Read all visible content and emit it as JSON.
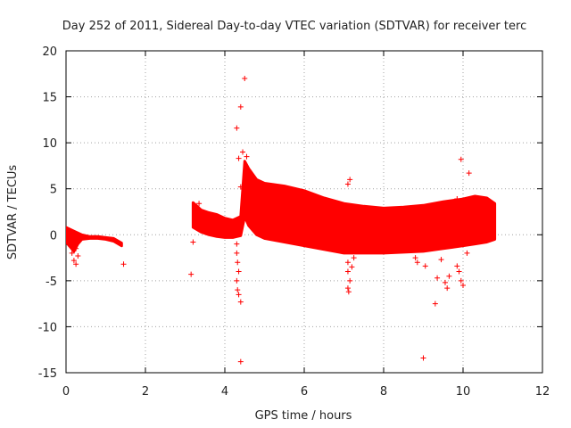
{
  "chart_data": {
    "type": "scatter",
    "title": "Day 252 of 2011, Sidereal Day-to-day VTEC variation (SDTVAR) for receiver terc",
    "xlabel": "GPS time / hours",
    "ylabel": "SDTVAR / TECUs",
    "xlim": [
      0,
      12
    ],
    "ylim": [
      -15,
      20
    ],
    "x_ticks": [
      0,
      2,
      4,
      6,
      8,
      10,
      12
    ],
    "y_ticks": [
      -15,
      -10,
      -5,
      0,
      5,
      10,
      15,
      20
    ],
    "grid": true,
    "marker": "+",
    "color": "#ff0000",
    "series": [
      {
        "name": "SDTVAR",
        "band_upper": [
          [
            0.0,
            0.8
          ],
          [
            0.2,
            0.4
          ],
          [
            0.4,
            0.0
          ],
          [
            0.6,
            -0.2
          ],
          [
            0.8,
            -0.2
          ],
          [
            1.0,
            -0.3
          ],
          [
            1.2,
            -0.4
          ],
          [
            1.4,
            -0.9
          ],
          [
            3.2,
            3.5
          ],
          [
            3.4,
            2.7
          ],
          [
            3.6,
            2.4
          ],
          [
            3.8,
            2.2
          ],
          [
            4.0,
            1.8
          ],
          [
            4.2,
            1.6
          ],
          [
            4.4,
            2.0
          ],
          [
            4.5,
            8.0
          ],
          [
            4.6,
            7.2
          ],
          [
            4.8,
            6.0
          ],
          [
            5.0,
            5.6
          ],
          [
            5.5,
            5.3
          ],
          [
            6.0,
            4.8
          ],
          [
            6.5,
            4.0
          ],
          [
            7.0,
            3.4
          ],
          [
            7.5,
            3.1
          ],
          [
            8.0,
            2.9
          ],
          [
            8.5,
            3.0
          ],
          [
            9.0,
            3.2
          ],
          [
            9.5,
            3.6
          ],
          [
            10.0,
            3.9
          ],
          [
            10.3,
            4.2
          ],
          [
            10.6,
            4.0
          ],
          [
            10.8,
            3.4
          ]
        ],
        "band_lower": [
          [
            0.0,
            -0.8
          ],
          [
            0.2,
            -1.8
          ],
          [
            0.3,
            -1.0
          ],
          [
            0.4,
            -0.5
          ],
          [
            0.6,
            -0.4
          ],
          [
            0.8,
            -0.4
          ],
          [
            1.0,
            -0.5
          ],
          [
            1.2,
            -0.7
          ],
          [
            1.4,
            -1.2
          ],
          [
            3.2,
            0.8
          ],
          [
            3.4,
            0.3
          ],
          [
            3.6,
            0.0
          ],
          [
            3.8,
            -0.2
          ],
          [
            4.0,
            -0.3
          ],
          [
            4.2,
            -0.3
          ],
          [
            4.4,
            -0.1
          ],
          [
            4.5,
            2.0
          ],
          [
            4.6,
            1.0
          ],
          [
            4.8,
            0.0
          ],
          [
            5.0,
            -0.4
          ],
          [
            5.5,
            -0.8
          ],
          [
            6.0,
            -1.2
          ],
          [
            6.5,
            -1.6
          ],
          [
            7.0,
            -2.0
          ],
          [
            7.5,
            -2.0
          ],
          [
            8.0,
            -2.0
          ],
          [
            8.5,
            -1.9
          ],
          [
            9.0,
            -1.8
          ],
          [
            9.5,
            -1.5
          ],
          [
            10.0,
            -1.2
          ],
          [
            10.3,
            -1.0
          ],
          [
            10.6,
            -0.8
          ],
          [
            10.8,
            -0.5
          ]
        ],
        "outliers": [
          [
            0.15,
            -2.0
          ],
          [
            0.2,
            -2.8
          ],
          [
            0.25,
            -3.2
          ],
          [
            0.3,
            -2.3
          ],
          [
            0.25,
            -1.5
          ],
          [
            1.45,
            -3.2
          ],
          [
            3.15,
            -4.3
          ],
          [
            3.2,
            -0.8
          ],
          [
            3.25,
            1.2
          ],
          [
            3.3,
            3.0
          ],
          [
            3.35,
            3.4
          ],
          [
            4.3,
            11.6
          ],
          [
            4.35,
            8.3
          ],
          [
            4.4,
            13.9
          ],
          [
            4.5,
            17.0
          ],
          [
            4.45,
            9.0
          ],
          [
            4.4,
            5.2
          ],
          [
            4.45,
            2.3
          ],
          [
            4.3,
            -1.0
          ],
          [
            4.3,
            -2.0
          ],
          [
            4.32,
            -3.0
          ],
          [
            4.35,
            -4.0
          ],
          [
            4.3,
            -5.0
          ],
          [
            4.32,
            -6.0
          ],
          [
            4.35,
            -6.5
          ],
          [
            4.4,
            -7.3
          ],
          [
            4.4,
            -13.8
          ],
          [
            4.55,
            8.5
          ],
          [
            4.6,
            7.0
          ],
          [
            7.1,
            -3.0
          ],
          [
            7.1,
            -4.0
          ],
          [
            7.15,
            -5.0
          ],
          [
            7.1,
            -5.8
          ],
          [
            7.12,
            -6.2
          ],
          [
            7.1,
            5.5
          ],
          [
            7.15,
            6.0
          ],
          [
            7.2,
            -3.5
          ],
          [
            7.25,
            -2.5
          ],
          [
            8.8,
            -2.5
          ],
          [
            8.85,
            -3.0
          ],
          [
            9.0,
            -13.4
          ],
          [
            9.05,
            -3.4
          ],
          [
            9.3,
            -7.5
          ],
          [
            9.35,
            -4.7
          ],
          [
            9.45,
            -2.7
          ],
          [
            9.55,
            -5.2
          ],
          [
            9.6,
            -5.8
          ],
          [
            9.65,
            -4.5
          ],
          [
            9.85,
            -3.4
          ],
          [
            9.9,
            -4.0
          ],
          [
            9.95,
            -5.0
          ],
          [
            10.0,
            -5.5
          ],
          [
            9.85,
            3.9
          ],
          [
            9.95,
            8.2
          ],
          [
            10.15,
            6.7
          ],
          [
            10.1,
            -2.0
          ]
        ]
      }
    ]
  }
}
